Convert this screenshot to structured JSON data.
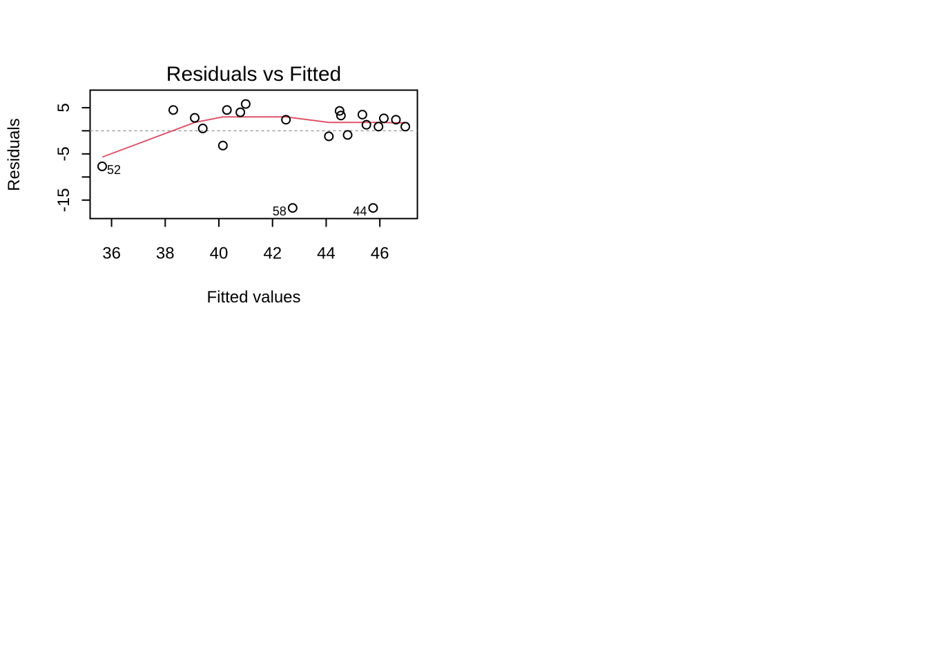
{
  "chart_data": {
    "type": "scatter",
    "title": "Residuals vs Fitted",
    "xlabel": "Fitted values",
    "ylabel": "Residuals",
    "xlim": [
      35.2,
      47.4
    ],
    "ylim": [
      -19.0,
      8.8
    ],
    "x_ticks": [
      36,
      38,
      40,
      42,
      44,
      46
    ],
    "x_tick_labels": [
      "36",
      "38",
      "40",
      "42",
      "44",
      "46"
    ],
    "y_ticks": [
      5,
      -5,
      -15
    ],
    "y_tick_labels": [
      "5",
      "-5",
      "-15"
    ],
    "reference_line": 0,
    "points": [
      {
        "x": 35.65,
        "y": -7.7,
        "label": "52"
      },
      {
        "x": 38.3,
        "y": 4.5,
        "label": ""
      },
      {
        "x": 39.1,
        "y": 2.8,
        "label": ""
      },
      {
        "x": 39.4,
        "y": 0.5,
        "label": ""
      },
      {
        "x": 40.15,
        "y": -3.2,
        "label": ""
      },
      {
        "x": 40.3,
        "y": 4.5,
        "label": ""
      },
      {
        "x": 40.8,
        "y": 4.0,
        "label": ""
      },
      {
        "x": 41.0,
        "y": 5.8,
        "label": ""
      },
      {
        "x": 42.5,
        "y": 2.4,
        "label": ""
      },
      {
        "x": 42.75,
        "y": -16.7,
        "label": "58"
      },
      {
        "x": 44.1,
        "y": -1.2,
        "label": ""
      },
      {
        "x": 44.5,
        "y": 4.3,
        "label": ""
      },
      {
        "x": 44.55,
        "y": 3.3,
        "label": ""
      },
      {
        "x": 44.8,
        "y": -0.9,
        "label": ""
      },
      {
        "x": 45.35,
        "y": 3.5,
        "label": ""
      },
      {
        "x": 45.5,
        "y": 1.3,
        "label": ""
      },
      {
        "x": 45.75,
        "y": -16.7,
        "label": "44"
      },
      {
        "x": 45.95,
        "y": 0.9,
        "label": ""
      },
      {
        "x": 46.15,
        "y": 2.7,
        "label": ""
      },
      {
        "x": 46.6,
        "y": 2.4,
        "label": ""
      },
      {
        "x": 46.95,
        "y": 0.9,
        "label": ""
      }
    ],
    "smooth_line": [
      {
        "x": 35.65,
        "y": -5.7
      },
      {
        "x": 39.1,
        "y": 1.8
      },
      {
        "x": 40.15,
        "y": 3.0
      },
      {
        "x": 42.5,
        "y": 3.0
      },
      {
        "x": 44.1,
        "y": 1.8
      },
      {
        "x": 45.95,
        "y": 1.8
      },
      {
        "x": 46.95,
        "y": 1.7
      }
    ],
    "colors": {
      "points": "#000000",
      "smooth_line": "#DF536B",
      "reference_line": "#9E9E9E",
      "axes": "#000000"
    },
    "grid": false,
    "legend": "none"
  }
}
